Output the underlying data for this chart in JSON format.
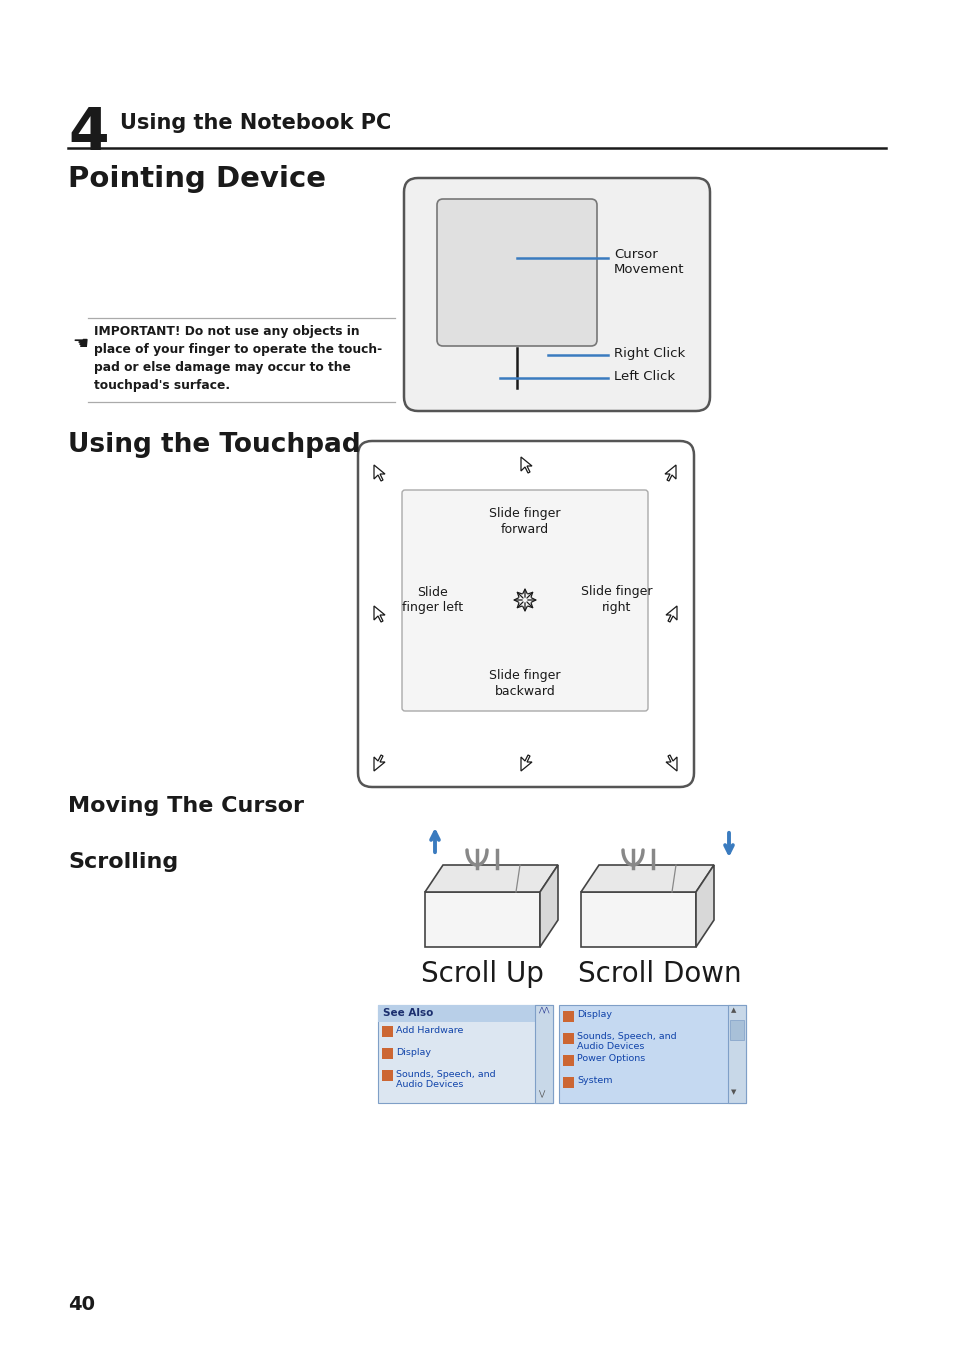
{
  "bg_color": "#ffffff",
  "chapter_number": "4",
  "chapter_title": "Using the Notebook PC",
  "section1_title": "Pointing Device",
  "section2_title": "Using the Touchpad",
  "section3_title": "Moving The Cursor",
  "section4_title": "Scrolling",
  "scroll_labels": [
    "Scroll Up",
    "Scroll Down"
  ],
  "page_number": "40",
  "blue_color": "#3a7bbf",
  "dark_color": "#1a1a1a",
  "gray_color": "#888888",
  "warning_bold": "IMPORTANT!",
  "warning_line1": "IMPORTANT! Do not use any objects in",
  "warning_line2": "place of your finger to operate the touch-",
  "warning_line3": "pad or else damage may occur to the",
  "warning_line4": "touchpad's surface.",
  "dir_forward": "Slide finger\nforward",
  "dir_backward": "Slide finger\nbackward",
  "dir_left": "Slide\nfinger left",
  "dir_right": "Slide finger\nright",
  "cursor_label": "Cursor\nMovement",
  "right_click_label": "Right Click",
  "left_click_label": "Left Click",
  "left_panel_header": "See Also",
  "left_items": [
    "Add Hardware",
    "Display",
    "Sounds, Speech, and\nAudio Devices"
  ],
  "right_items": [
    "Display",
    "Sounds, Speech, and\nAudio Devices",
    "Power Options",
    "System"
  ]
}
